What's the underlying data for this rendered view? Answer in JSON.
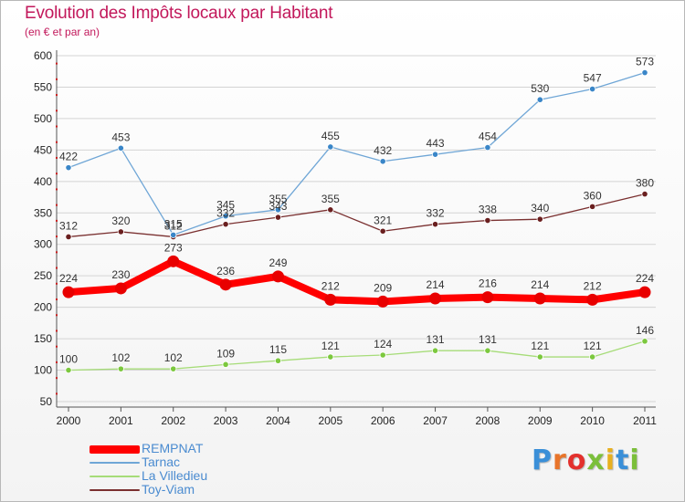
{
  "title": "Evolution des Impôts locaux par Habitant",
  "subtitle": "(en € et par an)",
  "logo": {
    "text": "Proxiti",
    "letter_colors": [
      "#3a8fd8",
      "#e8742a",
      "#e3312d",
      "#7bbf3a",
      "#e8b020",
      "#3a8fd8",
      "#7bbf3a"
    ]
  },
  "chart_data": {
    "type": "line",
    "title": "Evolution des Impôts locaux par Habitant",
    "subtitle": "(en € et par an)",
    "xlabel": "",
    "ylabel": "",
    "x": [
      "2000",
      "2001",
      "2002",
      "2003",
      "2004",
      "2005",
      "2006",
      "2007",
      "2008",
      "2009",
      "2010",
      "2011"
    ],
    "ylim": [
      50,
      600
    ],
    "yticks": [
      50,
      100,
      150,
      200,
      250,
      300,
      350,
      400,
      450,
      500,
      550,
      600
    ],
    "grid": "horizontal",
    "legend_position": "bottom-left",
    "series": [
      {
        "name": "REMPNAT",
        "color": "#ff0000",
        "marker": "#e80000",
        "values": [
          224,
          230,
          273,
          236,
          249,
          212,
          209,
          214,
          216,
          214,
          212,
          224
        ]
      },
      {
        "name": "Tarnac",
        "color": "#6fa6d6",
        "marker": "#3a86c8",
        "values": [
          422,
          453,
          315,
          345,
          355,
          455,
          432,
          443,
          454,
          530,
          547,
          573
        ]
      },
      {
        "name": "La Villedieu",
        "color": "#a6dc78",
        "marker": "#7cc83e",
        "values": [
          100,
          102,
          102,
          109,
          115,
          121,
          124,
          131,
          131,
          121,
          121,
          146
        ]
      },
      {
        "name": "Toy-Viam",
        "color": "#7a3030",
        "marker": "#6a1f1f",
        "values": [
          312,
          320,
          312,
          332,
          343,
          355,
          321,
          332,
          338,
          340,
          360,
          380
        ]
      }
    ]
  }
}
